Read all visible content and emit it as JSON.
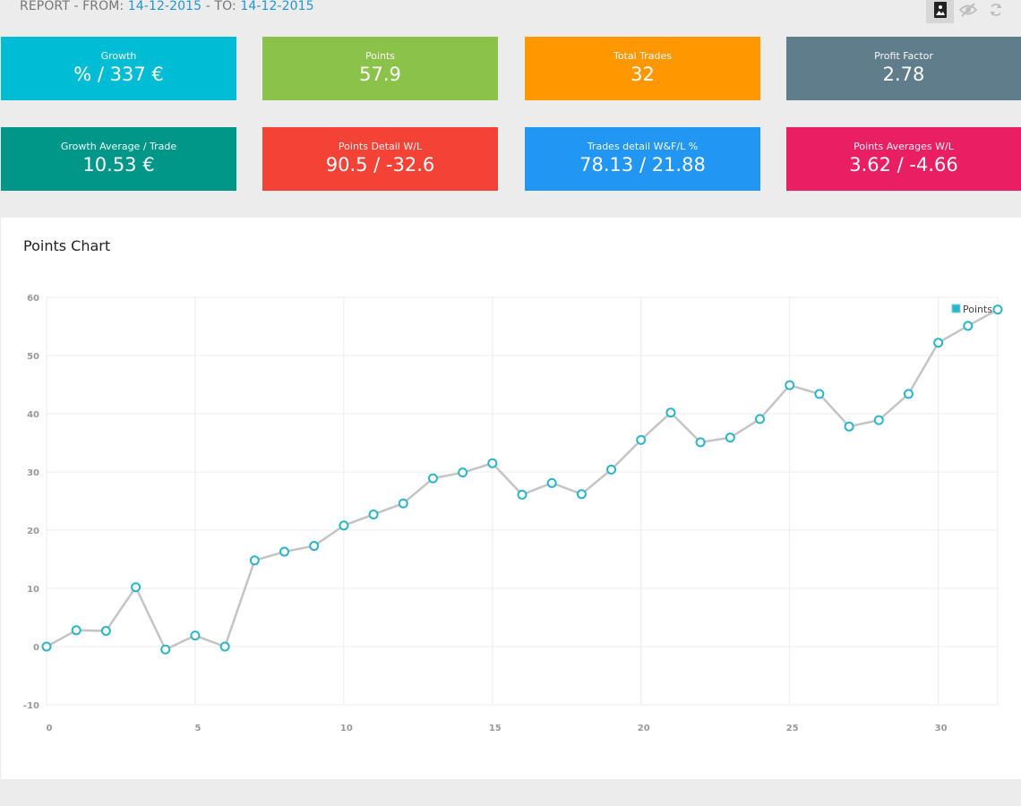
{
  "header": {
    "prefix": "REPORT - FROM: ",
    "from_date": "14-12-2015",
    "middle": " - TO: ",
    "to_date": "14-12-2015"
  },
  "toolbar": {
    "buttons": [
      {
        "icon": "image-icon",
        "active": true
      },
      {
        "icon": "eye-slash-icon",
        "active": false
      },
      {
        "icon": "refresh-icon",
        "active": false
      }
    ]
  },
  "cards": [
    {
      "label": "Growth",
      "value": "% / 337 €",
      "color": "#00bcd4"
    },
    {
      "label": "Points",
      "value": "57.9",
      "color": "#8bc34a"
    },
    {
      "label": "Total Trades",
      "value": "32",
      "color": "#ff9800"
    },
    {
      "label": "Profit Factor",
      "value": "2.78",
      "color": "#607d8b"
    },
    {
      "label": "Growth Average / Trade",
      "value": "10.53 €",
      "color": "#009688"
    },
    {
      "label": "Points Detail W/L",
      "value": "90.5 / -32.6",
      "color": "#f44336"
    },
    {
      "label": "Trades detail W&F/L %",
      "value": "78.13 / 21.88",
      "color": "#2196f3"
    },
    {
      "label": "Points Averages W/L",
      "value": "3.62 / -4.66",
      "color": "#e91e63"
    }
  ],
  "chart_panel": {
    "title": "Points Chart"
  },
  "chart_data": {
    "type": "line",
    "title": "Points Chart",
    "xlabel": "",
    "ylabel": "",
    "xlim": [
      0,
      32
    ],
    "ylim": [
      -10,
      60
    ],
    "x_ticks": [
      0,
      5,
      10,
      15,
      20,
      25,
      30
    ],
    "y_ticks": [
      -10,
      0,
      10,
      20,
      30,
      40,
      50,
      60
    ],
    "grid": true,
    "legend_position": "top-right",
    "series": [
      {
        "name": "Points",
        "color": "#29b6c8",
        "x": [
          0,
          1,
          2,
          3,
          4,
          5,
          6,
          7,
          8,
          9,
          10,
          11,
          12,
          13,
          14,
          15,
          16,
          17,
          18,
          19,
          20,
          21,
          22,
          23,
          24,
          25,
          26,
          27,
          28,
          29,
          30,
          31,
          32
        ],
        "y": [
          0,
          2.8,
          2.7,
          10.2,
          -0.5,
          1.9,
          0,
          14.8,
          16.3,
          17.3,
          20.8,
          22.7,
          24.6,
          28.9,
          29.9,
          31.5,
          26.1,
          28.1,
          26.2,
          30.4,
          35.5,
          40.2,
          35.1,
          35.9,
          39.1,
          44.9,
          43.4,
          37.8,
          38.9,
          43.4,
          52.2,
          55.1,
          57.9
        ]
      }
    ]
  }
}
